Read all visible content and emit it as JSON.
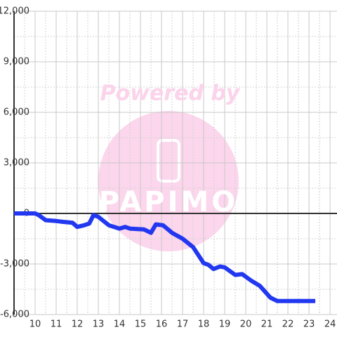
{
  "chart_data": {
    "type": "line",
    "annotations": [
      "Powered by",
      "PAPIMO"
    ],
    "xlim": [
      9,
      24.33
    ],
    "ylim": [
      -6000,
      12000
    ],
    "xticks": [
      10,
      11,
      12,
      13,
      14,
      15,
      16,
      17,
      18,
      19,
      20,
      21,
      22,
      23,
      24
    ],
    "yticks": [
      {
        "value": -6000,
        "label": "-6,000"
      },
      {
        "value": -3000,
        "label": "-3,000"
      },
      0,
      {
        "value": 3000,
        "label": "3,000"
      },
      {
        "value": 6000,
        "label": "6,000"
      },
      {
        "value": 9000,
        "label": "9,000"
      },
      {
        "value": 12000,
        "label": "12,000"
      }
    ],
    "grid": true,
    "series": [
      {
        "color": "#2238f0",
        "x": [
          9.0,
          10.0,
          10.17,
          10.5,
          11.0,
          11.33,
          11.77,
          12.0,
          12.33,
          12.57,
          12.77,
          13.0,
          13.5,
          14.0,
          14.27,
          14.5,
          15.17,
          15.5,
          15.73,
          16.07,
          16.5,
          17.0,
          17.5,
          18.0,
          18.23,
          18.47,
          18.77,
          19.0,
          19.5,
          19.83,
          20.27,
          20.67,
          21.17,
          21.5,
          23.3
        ],
        "values": [
          0,
          0,
          -100,
          -400,
          -450,
          -500,
          -550,
          -800,
          -700,
          -600,
          -100,
          -200,
          -700,
          -900,
          -800,
          -900,
          -950,
          -1150,
          -650,
          -700,
          -1150,
          -1500,
          -2000,
          -2950,
          -3050,
          -3300,
          -3150,
          -3200,
          -3650,
          -3600,
          -4000,
          -4300,
          -5000,
          -5200,
          -5200
        ]
      }
    ]
  }
}
